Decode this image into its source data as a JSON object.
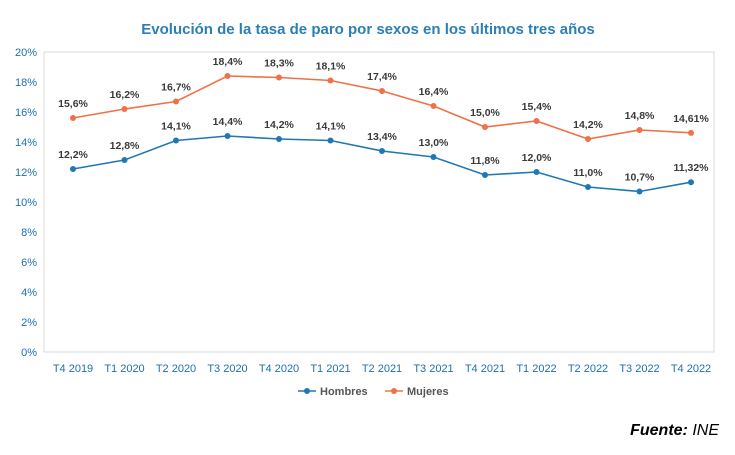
{
  "chart_data": {
    "type": "line",
    "title": "Evolución de la tasa de paro por sexos en los últimos tres años",
    "xlabel": "",
    "ylabel": "",
    "ylim": [
      0,
      20
    ],
    "y_ticks": [
      "0%",
      "2%",
      "4%",
      "6%",
      "8%",
      "10%",
      "12%",
      "14%",
      "16%",
      "18%",
      "20%"
    ],
    "categories": [
      "T4 2019",
      "T1 2020",
      "T2 2020",
      "T3 2020",
      "T4 2020",
      "T1 2021",
      "T2 2021",
      "T3 2021",
      "T4 2021",
      "T1 2022",
      "T2 2022",
      "T3 2022",
      "T4 2022"
    ],
    "series": [
      {
        "name": "Hombres",
        "color": "#1f77b4",
        "values": [
          12.2,
          12.8,
          14.1,
          14.4,
          14.2,
          14.1,
          13.4,
          13.0,
          11.8,
          12.0,
          11.0,
          10.7,
          11.32
        ],
        "labels": [
          "12,2%",
          "12,8%",
          "14,1%",
          "14,4%",
          "14,2%",
          "14,1%",
          "13,4%",
          "13,0%",
          "11,8%",
          "12,0%",
          "11,0%",
          "10,7%",
          "11,32%"
        ]
      },
      {
        "name": "Mujeres",
        "color": "#f07147",
        "values": [
          15.6,
          16.2,
          16.7,
          18.4,
          18.3,
          18.1,
          17.4,
          16.4,
          15.0,
          15.4,
          14.2,
          14.8,
          14.61
        ],
        "labels": [
          "15,6%",
          "16,2%",
          "16,7%",
          "18,4%",
          "18,3%",
          "18,1%",
          "17,4%",
          "16,4%",
          "15,0%",
          "15,4%",
          "14,2%",
          "14,8%",
          "14,61%"
        ]
      }
    ],
    "legend": "bottom",
    "grid": false
  },
  "source": {
    "label": "Fuente:",
    "value": "INE"
  }
}
